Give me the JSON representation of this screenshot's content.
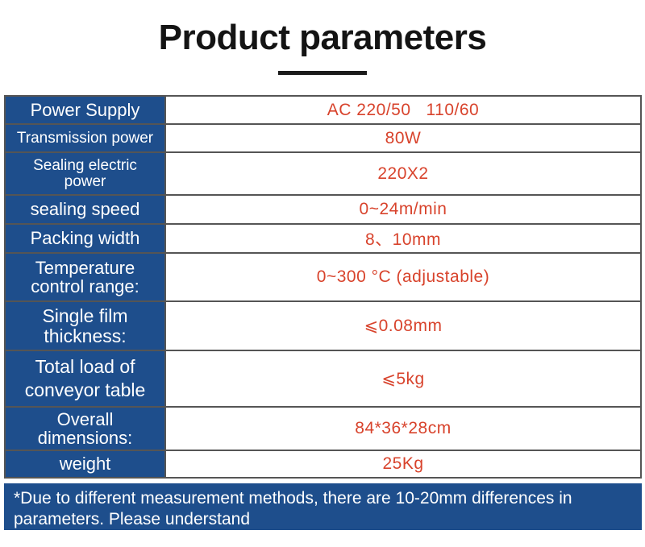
{
  "title": "Product parameters",
  "colors": {
    "label_bg": "#1e4e8c",
    "value_text": "#d8432c",
    "title_text": "#141414"
  },
  "rows": [
    {
      "label": "Power Supply",
      "value": "AC 220/50   110/60"
    },
    {
      "label": "Transmission power",
      "value": "80W"
    },
    {
      "label": "Sealing electric power",
      "value": "220X2"
    },
    {
      "label": "sealing speed",
      "value": "0~24m/min"
    },
    {
      "label": "Packing width",
      "value": "8、10mm"
    },
    {
      "label": "Temperature control range:",
      "value": "0~300 °C (adjustable)"
    },
    {
      "label": "Single film thickness:",
      "value": "⩽0.08mm"
    },
    {
      "label": "Total load of conveyor table",
      "value": "⩽5kg"
    },
    {
      "label": "Overall dimensions:",
      "value": "84*36*28cm"
    },
    {
      "label": "weight",
      "value": "25Kg"
    }
  ],
  "note": "*Due to different measurement methods, there are 10-20mm differences in parameters. Please understand"
}
